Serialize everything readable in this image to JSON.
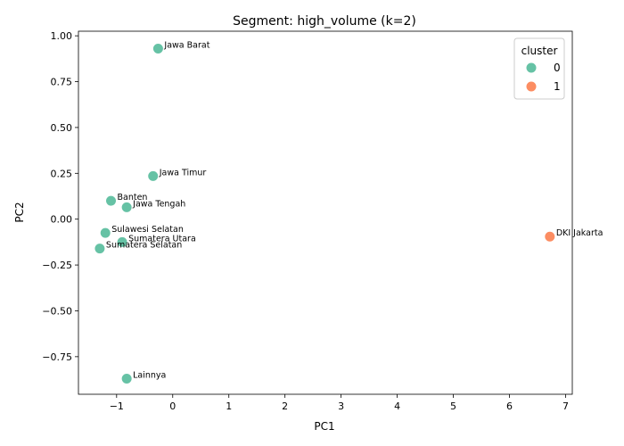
{
  "chart_data": {
    "type": "scatter",
    "title": "Segment: high_volume (k=2)",
    "xlabel": "PC1",
    "ylabel": "PC2",
    "xlim": [
      -1.68,
      7.12
    ],
    "ylim": [
      -0.955,
      1.025
    ],
    "xticks": [
      -1,
      0,
      1,
      2,
      3,
      4,
      5,
      6,
      7
    ],
    "yticks": [
      -0.75,
      -0.5,
      -0.25,
      0.0,
      0.25,
      0.5,
      0.75,
      1.0
    ],
    "ytick_labels": [
      "−0.75",
      "−0.50",
      "−0.25",
      "0.00",
      "0.25",
      "0.50",
      "0.75",
      "1.00"
    ],
    "xtick_labels": [
      "−1",
      "0",
      "1",
      "2",
      "3",
      "4",
      "5",
      "6",
      "7"
    ],
    "grid": false,
    "legend": {
      "title": "cluster",
      "placement": "top-right",
      "entries": [
        {
          "label": "0",
          "color": "#66c2a5"
        },
        {
          "label": "1",
          "color": "#fc8d62"
        }
      ]
    },
    "points": [
      {
        "label": "Jawa Barat",
        "x": -0.26,
        "y": 0.93,
        "cluster": 0
      },
      {
        "label": "Jawa Timur",
        "x": -0.35,
        "y": 0.235,
        "cluster": 0
      },
      {
        "label": "Banten",
        "x": -1.1,
        "y": 0.1,
        "cluster": 0
      },
      {
        "label": "Jawa Tengah",
        "x": -0.82,
        "y": 0.065,
        "cluster": 0
      },
      {
        "label": "Sulawesi Selatan",
        "x": -1.2,
        "y": -0.075,
        "cluster": 0
      },
      {
        "label": "Sumatera Utara",
        "x": -0.9,
        "y": -0.125,
        "cluster": 0
      },
      {
        "label": "Sumatera Selatan",
        "x": -1.3,
        "y": -0.16,
        "cluster": 0
      },
      {
        "label": "Lainnya",
        "x": -0.82,
        "y": -0.87,
        "cluster": 0
      },
      {
        "label": "DKI Jakarta",
        "x": 6.72,
        "y": -0.095,
        "cluster": 1
      }
    ]
  }
}
